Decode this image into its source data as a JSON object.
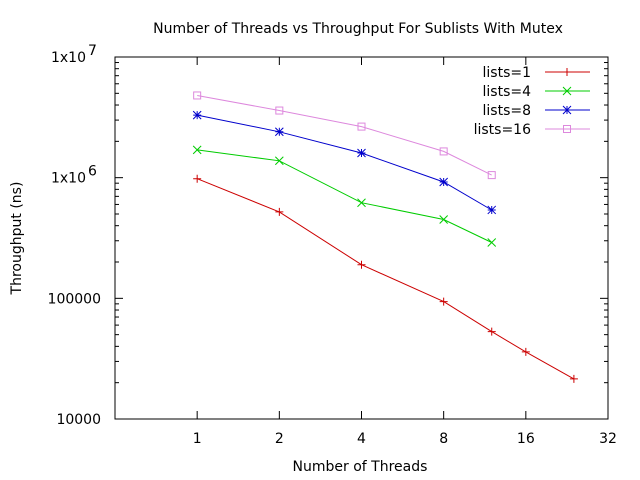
{
  "chart_data": {
    "type": "line",
    "title": "Number of Threads vs Throughput For Sublists With Mutex",
    "xlabel": "Number of Threads",
    "ylabel": "Throughput (ns)",
    "x_scale": "log2",
    "y_scale": "log10",
    "xlim": [
      0.5,
      32
    ],
    "ylim": [
      10000,
      10000000
    ],
    "x_ticks": [
      {
        "value": 1,
        "label": "1"
      },
      {
        "value": 2,
        "label": "2"
      },
      {
        "value": 4,
        "label": "4"
      },
      {
        "value": 8,
        "label": "8"
      },
      {
        "value": 16,
        "label": "16"
      },
      {
        "value": 32,
        "label": "32"
      }
    ],
    "y_ticks": [
      {
        "value": 10000,
        "label": "10000"
      },
      {
        "value": 100000,
        "label": "100000"
      },
      {
        "value": 1000000,
        "label": "1x10",
        "exp": "6"
      },
      {
        "value": 10000000,
        "label": "1x10",
        "exp": "7"
      }
    ],
    "grid": false,
    "legend_position": "top-right",
    "series": [
      {
        "name": "lists=1",
        "color": "#cc0000",
        "marker": "plus",
        "x": [
          1,
          2,
          4,
          8,
          12,
          16,
          24
        ],
        "values": [
          980000,
          520000,
          190000,
          94000,
          53000,
          36000,
          21500
        ]
      },
      {
        "name": "lists=4",
        "color": "#00cc00",
        "marker": "cross",
        "x": [
          1,
          2,
          4,
          8,
          12
        ],
        "values": [
          1700000,
          1380000,
          620000,
          450000,
          290000
        ]
      },
      {
        "name": "lists=8",
        "color": "#0000cc",
        "marker": "star",
        "x": [
          1,
          2,
          4,
          8,
          12
        ],
        "values": [
          3300000,
          2400000,
          1600000,
          920000,
          540000
        ]
      },
      {
        "name": "lists=16",
        "color": "#dd88dd",
        "marker": "square",
        "x": [
          1,
          2,
          4,
          8,
          12
        ],
        "values": [
          4800000,
          3600000,
          2650000,
          1650000,
          1050000
        ]
      }
    ]
  }
}
